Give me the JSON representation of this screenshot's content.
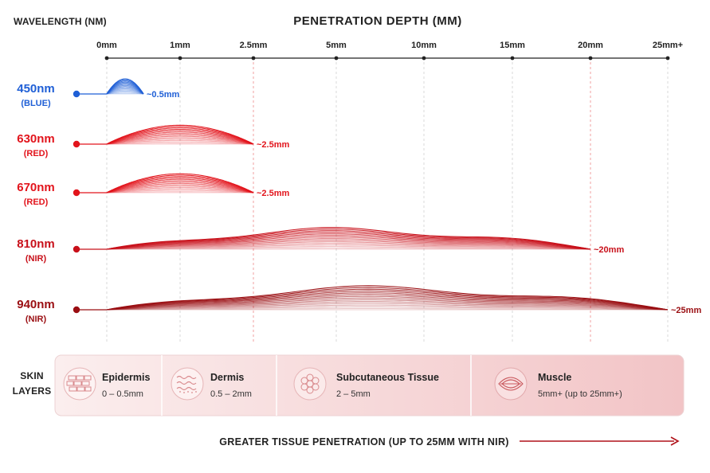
{
  "header": {
    "wavelength_label": "WAVELENGTH (NM)",
    "title": "PENETRATION DEPTH (MM)"
  },
  "axis": {
    "ticks": [
      {
        "label": "0mm",
        "value": 0,
        "highlight": false
      },
      {
        "label": "1mm",
        "value": 1,
        "highlight": false
      },
      {
        "label": "2.5mm",
        "value": 2.5,
        "highlight": true
      },
      {
        "label": "5mm",
        "value": 5,
        "highlight": false
      },
      {
        "label": "10mm",
        "value": 10,
        "highlight": false
      },
      {
        "label": "15mm",
        "value": 15,
        "highlight": false
      },
      {
        "label": "20mm",
        "value": 20,
        "highlight": true
      },
      {
        "label": "25mm+",
        "value": 25,
        "highlight": false
      }
    ]
  },
  "wavelengths": [
    {
      "name": "450nm",
      "band": "(BLUE)",
      "depth_label": "~0.5mm",
      "depth_mm": 0.5,
      "color": "#1f5fd6"
    },
    {
      "name": "630nm",
      "band": "(RED)",
      "depth_label": "~2.5mm",
      "depth_mm": 2.5,
      "color": "#e2141c"
    },
    {
      "name": "670nm",
      "band": "(RED)",
      "depth_label": "~2.5mm",
      "depth_mm": 2.5,
      "color": "#e2141c"
    },
    {
      "name": "810nm",
      "band": "(NIR)",
      "depth_label": "~20mm",
      "depth_mm": 20,
      "color": "#c8101a"
    },
    {
      "name": "940nm",
      "band": "(NIR)",
      "depth_label": "~25mm",
      "depth_mm": 25,
      "color": "#9a0e12"
    }
  ],
  "skin_layers": {
    "label_line1": "SKIN",
    "label_line2": "LAYERS",
    "items": [
      {
        "name": "Epidermis",
        "range": "0 – 0.5mm",
        "icon": "epidermis-icon"
      },
      {
        "name": "Dermis",
        "range": "0.5 – 2mm",
        "icon": "dermis-icon"
      },
      {
        "name": "Subcutaneous Tissue",
        "range": "2 – 5mm",
        "icon": "fat-cells-icon"
      },
      {
        "name": "Muscle",
        "range": "5mm+ (up to 25mm+)",
        "icon": "muscle-icon"
      }
    ]
  },
  "footer": {
    "caption": "GREATER TISSUE PENETRATION (UP TO 25MM WITH NIR)",
    "start_color": "#2f6fe0",
    "mid_color": "#9a3cc8",
    "end_color": "#b0121a"
  },
  "colors": {
    "axis": "#222222",
    "highlight_tick": "#e2141c",
    "guide": "#d8d8d8",
    "guide_highlight": "#f0a0a0"
  }
}
